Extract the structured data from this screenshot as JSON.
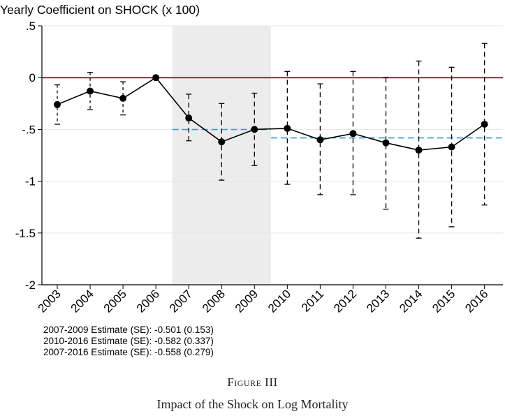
{
  "chart_data": {
    "type": "line",
    "title": "Yearly Coefficient on SHOCK (x 100)",
    "xlabel": "",
    "ylabel": "",
    "categories": [
      "2003",
      "2004",
      "2005",
      "2006",
      "2007",
      "2008",
      "2009",
      "2010",
      "2011",
      "2012",
      "2013",
      "2014",
      "2015",
      "2016"
    ],
    "y_ticks": [
      {
        "value": 0.5,
        "label": ".5"
      },
      {
        "value": 0,
        "label": "0"
      },
      {
        "value": -0.5,
        "label": "-.5"
      },
      {
        "value": -1,
        "label": "-1"
      },
      {
        "value": -1.5,
        "label": "-1.5"
      },
      {
        "value": -2,
        "label": "-2"
      }
    ],
    "ylim": [
      -2,
      0.5
    ],
    "grid": true,
    "series": [
      {
        "name": "Yearly coefficient",
        "values": [
          -0.26,
          -0.13,
          -0.2,
          0.0,
          -0.39,
          -0.62,
          -0.5,
          -0.49,
          -0.6,
          -0.54,
          -0.63,
          -0.7,
          -0.67,
          -0.45
        ],
        "ci_low": [
          -0.45,
          -0.31,
          -0.36,
          0.0,
          -0.61,
          -0.99,
          -0.85,
          -1.03,
          -1.13,
          -1.13,
          -1.27,
          -1.55,
          -1.44,
          -1.23
        ],
        "ci_high": [
          -0.07,
          0.05,
          -0.04,
          0.0,
          -0.16,
          -0.25,
          -0.15,
          0.06,
          -0.06,
          0.06,
          0.0,
          0.16,
          0.1,
          0.33
        ]
      }
    ],
    "shaded_region": {
      "from": "2007",
      "to": "2009",
      "color": "#ececec"
    },
    "reference_line": {
      "y": 0,
      "color": "#b3173f"
    },
    "period_estimates": [
      {
        "from": "2007",
        "to": "2009",
        "y": -0.501,
        "color": "#3a9ec9"
      },
      {
        "from": "2010",
        "to": "2016",
        "y": -0.582,
        "color": "#3a9ec9"
      }
    ]
  },
  "notes": [
    "2007-2009 Estimate (SE): -0.501 (0.153)",
    "2010-2016 Estimate (SE): -0.582 (0.337)",
    "2007-2016 Estimate (SE): -0.558 (0.279)"
  ],
  "caption": {
    "figure_label": "Figure III",
    "title": "Impact of the Shock on Log Mortality"
  }
}
